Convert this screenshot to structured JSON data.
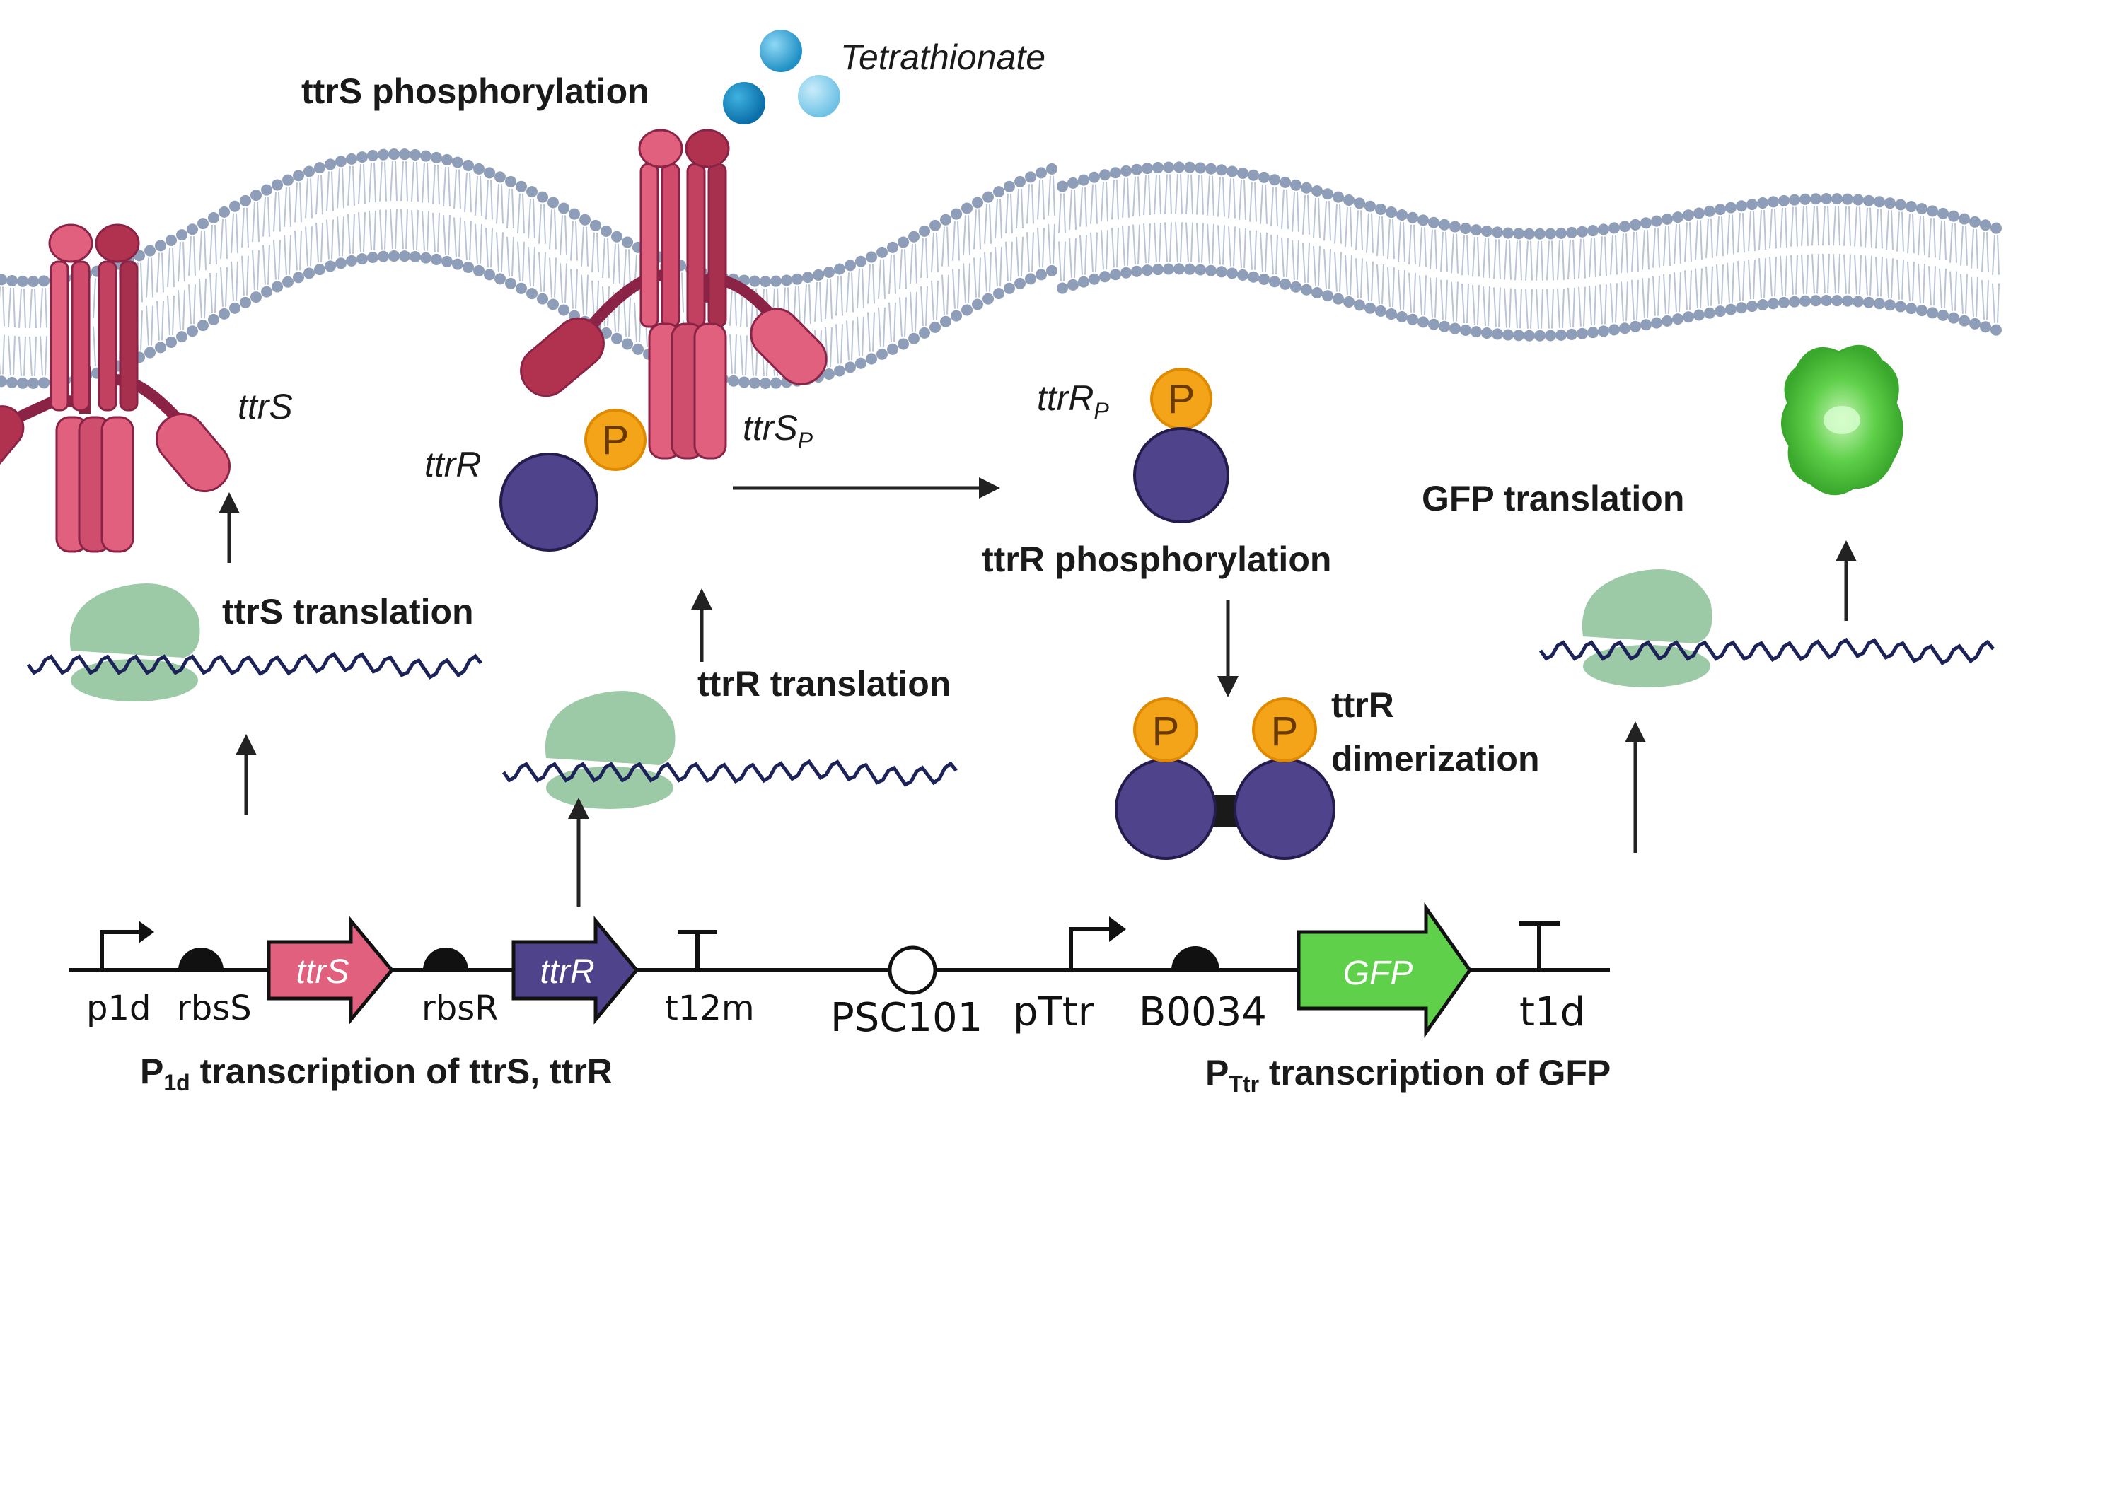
{
  "title": "",
  "colors": {
    "ttrS_receptor": "#e0607e",
    "ttrS_dark": "#8a2346",
    "ttrR_protein": "#4f438c",
    "phosphate": "#f4a418",
    "ribosome": "#9cc9a6",
    "mrna": "#1c2358",
    "gfp": "#5fd04a",
    "membrane_head": "#8e9db8",
    "membrane_tail": "#b9c4d6",
    "tetrathionate": "#35a7d9"
  },
  "labels": {
    "tetrathionate": "Tetrathionate",
    "ttrs_phosphorylation": "ttrS phosphorylation",
    "ttrs": "ttrS",
    "ttrr": "ttrR",
    "ttrs_p": "ttrS",
    "ttrs_p_sub": "P",
    "ttrr_p": "ttrR",
    "ttrr_p_sub": "P",
    "ttrr_phosphorylation": "ttrR phosphorylation",
    "ttrr_dimerization_1": "ttrR",
    "ttrr_dimerization_2": "dimerization",
    "gfp_translation": "GFP translation",
    "ttrs_translation": "ttrS translation",
    "ttrr_translation": "ttrR translation",
    "phosphate_symbol": "P",
    "p1d_caption_main": "P",
    "p1d_caption_sub": "1d",
    "p1d_caption_rest": " transcription of ttrS, ttrR",
    "pttr_caption_main": "P",
    "pttr_caption_sub": "Ttr",
    "pttr_caption_rest": " transcription of GFP"
  },
  "parts": {
    "p1d": "p1d",
    "rbsS": "rbsS",
    "ttrS": "ttrS",
    "rbsR": "rbsR",
    "ttrR": "ttrR",
    "t12m": "t12m",
    "psc101": "PSC101",
    "pTtr": "pTtr",
    "b0034": "B0034",
    "gfp": "GFP",
    "t1d": "t1d"
  }
}
